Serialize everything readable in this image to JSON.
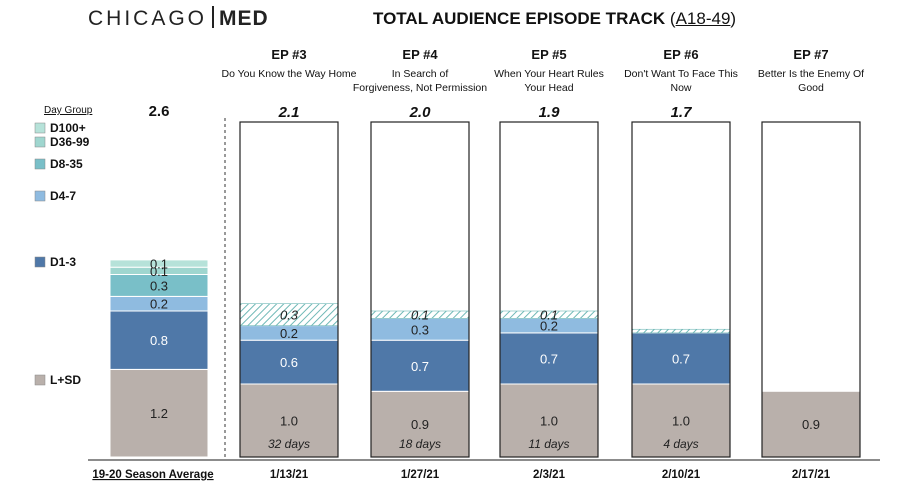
{
  "header": {
    "logo_left": "CHICAGO",
    "logo_right": "MED",
    "title_main": "TOTAL AUDIENCE EPISODE TRACK",
    "title_open": "(",
    "title_demo": "A18-49",
    "title_close": ")"
  },
  "legend_title": "Day Group",
  "legend": [
    {
      "key": "d100",
      "label": "D100+",
      "color": "#b6e2d9"
    },
    {
      "key": "d36",
      "label": "D36-99",
      "color": "#9fd6cf"
    },
    {
      "key": "d8",
      "label": "D8-35",
      "color": "#79bfc8"
    },
    {
      "key": "d4",
      "label": "D4-7",
      "color": "#8fbbe0"
    },
    {
      "key": "d1",
      "label": "D1-3",
      "color": "#4f78a8"
    },
    {
      "key": "lsd",
      "label": "L+SD",
      "color": "#b9b0ab"
    }
  ],
  "chart_data": {
    "type": "bar",
    "stacked": true,
    "title": "TOTAL AUDIENCE EPISODE TRACK (A18-49)",
    "ylim": [
      0,
      2.6
    ],
    "columns": [
      {
        "episode": "",
        "subtitle": "",
        "date": "19-20 Season Average",
        "total": "2.6",
        "total_italic": false,
        "days": "",
        "segments": [
          {
            "key": "lsd",
            "value": 1.2,
            "label": "1.2"
          },
          {
            "key": "d1",
            "value": 0.8,
            "label": "0.8"
          },
          {
            "key": "d4",
            "value": 0.2,
            "label": "0.2"
          },
          {
            "key": "d8",
            "value": 0.3,
            "label": "0.3"
          },
          {
            "key": "d36",
            "value": 0.1,
            "label": "0.1"
          },
          {
            "key": "d100",
            "value": 0.1,
            "label": "0.1"
          }
        ]
      },
      {
        "episode": "EP #3",
        "subtitle": "Do You Know the Way Home",
        "date": "1/13/21",
        "total": "2.1",
        "total_italic": true,
        "days": "32 days",
        "segments": [
          {
            "key": "lsd",
            "value": 1.0,
            "label": "1.0"
          },
          {
            "key": "d1",
            "value": 0.6,
            "label": "0.6"
          },
          {
            "key": "d4",
            "value": 0.2,
            "label": "0.2"
          },
          {
            "key": "proj",
            "value": 0.3,
            "label": "0.3"
          }
        ]
      },
      {
        "episode": "EP #4",
        "subtitle": "In Search of Forgiveness, Not Permission",
        "date": "1/27/21",
        "total": "2.0",
        "total_italic": true,
        "days": "18 days",
        "segments": [
          {
            "key": "lsd",
            "value": 0.9,
            "label": "0.9"
          },
          {
            "key": "d1",
            "value": 0.7,
            "label": "0.7"
          },
          {
            "key": "d4",
            "value": 0.3,
            "label": "0.3"
          },
          {
            "key": "proj",
            "value": 0.1,
            "label": "0.1"
          }
        ]
      },
      {
        "episode": "EP #5",
        "subtitle": "When Your Heart Rules Your Head",
        "date": "2/3/21",
        "total": "1.9",
        "total_italic": true,
        "days": "11 days",
        "segments": [
          {
            "key": "lsd",
            "value": 1.0,
            "label": "1.0"
          },
          {
            "key": "d1",
            "value": 0.7,
            "label": "0.7"
          },
          {
            "key": "d4",
            "value": 0.2,
            "label": "0.2"
          },
          {
            "key": "proj",
            "value": 0.1,
            "label": "0.1"
          }
        ]
      },
      {
        "episode": "EP #6",
        "subtitle": "Don't Want To Face This Now",
        "date": "2/10/21",
        "total": "1.7",
        "total_italic": true,
        "days": "4 days",
        "segments": [
          {
            "key": "lsd",
            "value": 1.0,
            "label": "1.0"
          },
          {
            "key": "d1",
            "value": 0.7,
            "label": "0.7"
          },
          {
            "key": "proj",
            "value": 0.05,
            "label": ""
          }
        ]
      },
      {
        "episode": "EP #7",
        "subtitle": "Better Is the Enemy Of Good",
        "date": "2/17/21",
        "total": "",
        "total_italic": false,
        "days": "",
        "segments": [
          {
            "key": "lsd",
            "value": 0.9,
            "label": "0.9"
          }
        ]
      }
    ]
  }
}
